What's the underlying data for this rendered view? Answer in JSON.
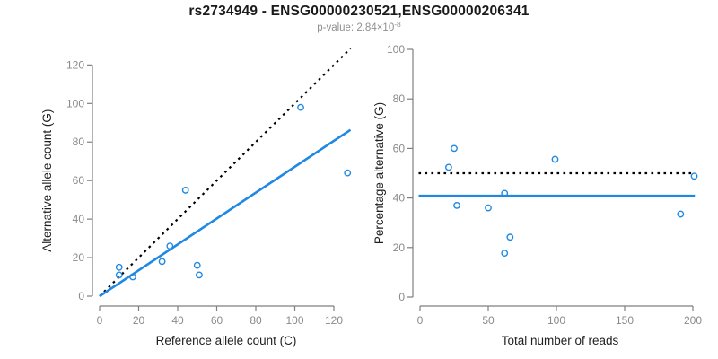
{
  "header": {
    "title": "rs2734949 - ENSG00000230521,ENSG00000206341",
    "pvalue_prefix": "p-value: ",
    "pvalue_mantissa": "2.84×10",
    "pvalue_exponent": "-8"
  },
  "colors": {
    "accent_blue": "#1E88E5",
    "axis_gray": "#7f7f7f",
    "tick_text_gray": "#8a8a8a",
    "label_black": "#1f1f1f",
    "line_black": "#000000",
    "background": "#ffffff"
  },
  "chart_data": [
    {
      "type": "scatter",
      "panel": "allele-counts",
      "xlabel": "Reference allele count (C)",
      "ylabel": "Alternative allele count (G)",
      "xlim": [
        0,
        130
      ],
      "ylim": [
        0,
        129
      ],
      "xticks": [
        0,
        20,
        40,
        60,
        80,
        100,
        120
      ],
      "yticks": [
        0,
        20,
        40,
        60,
        80,
        100,
        120
      ],
      "grid": false,
      "point_color": "#1E88E5",
      "points": [
        {
          "x": 10,
          "y": 15
        },
        {
          "x": 10,
          "y": 11
        },
        {
          "x": 17,
          "y": 10
        },
        {
          "x": 32,
          "y": 18
        },
        {
          "x": 36,
          "y": 26
        },
        {
          "x": 44,
          "y": 55
        },
        {
          "x": 50,
          "y": 16
        },
        {
          "x": 51,
          "y": 11
        },
        {
          "x": 103,
          "y": 98
        },
        {
          "x": 127,
          "y": 64
        }
      ],
      "lines": [
        {
          "name": "identity-expected-line",
          "style": "dotted",
          "color": "#000000",
          "width": 2.2,
          "x1": 0,
          "y1": 0,
          "x2": 128.5,
          "y2": 128.5
        },
        {
          "name": "observed-fit-line",
          "style": "solid",
          "color": "#1E88E5",
          "width": 2.6,
          "x1": 0,
          "y1": 0,
          "x2": 128.5,
          "y2": 86.3
        }
      ]
    },
    {
      "type": "scatter",
      "panel": "percentage-vs-depth",
      "xlabel": "Total number of reads",
      "ylabel": "Percentage alternative (G)",
      "xlim": [
        0,
        205
      ],
      "ylim": [
        0,
        100
      ],
      "xticks": [
        0,
        50,
        100,
        150,
        200
      ],
      "yticks": [
        0,
        20,
        40,
        60,
        80,
        100
      ],
      "grid": false,
      "point_color": "#1E88E5",
      "points": [
        {
          "x": 21,
          "y": 52.4
        },
        {
          "x": 25,
          "y": 60.0
        },
        {
          "x": 27,
          "y": 37.0
        },
        {
          "x": 50,
          "y": 36.0
        },
        {
          "x": 62,
          "y": 41.9
        },
        {
          "x": 62,
          "y": 17.7
        },
        {
          "x": 66,
          "y": 24.2
        },
        {
          "x": 99,
          "y": 55.6
        },
        {
          "x": 191,
          "y": 33.5
        },
        {
          "x": 201,
          "y": 48.8
        }
      ],
      "lines": [
        {
          "name": "expected-50pct-line",
          "style": "dotted",
          "color": "#000000",
          "width": 2.2,
          "x1": -1,
          "y1": 50,
          "x2": 201.5,
          "y2": 50
        },
        {
          "name": "mean-alt-pct-line",
          "style": "solid",
          "color": "#1E88E5",
          "width": 3,
          "x1": -1,
          "y1": 40.8,
          "x2": 201.5,
          "y2": 40.8
        }
      ]
    }
  ]
}
